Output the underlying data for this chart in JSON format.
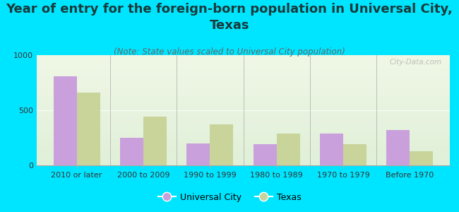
{
  "title": "Year of entry for the foreign-born population in Universal City,\nTexas",
  "subtitle": "(Note: State values scaled to Universal City population)",
  "categories": [
    "2010 or later",
    "2000 to 2009",
    "1990 to 1999",
    "1980 to 1989",
    "1970 to 1979",
    "Before 1970"
  ],
  "universal_city_values": [
    810,
    250,
    200,
    190,
    290,
    320
  ],
  "texas_values": [
    660,
    440,
    370,
    290,
    195,
    130
  ],
  "universal_city_color": "#c9a0dc",
  "texas_color": "#c8d49a",
  "background_color": "#00e5ff",
  "plot_bg_color": "#e8f0dc",
  "ylim": [
    0,
    1000
  ],
  "yticks": [
    0,
    500,
    1000
  ],
  "bar_width": 0.35,
  "title_fontsize": 13,
  "subtitle_fontsize": 8.5,
  "tick_fontsize": 8,
  "legend_fontsize": 9,
  "title_color": "#1a3a3a",
  "subtitle_color": "#666666",
  "watermark_text": "City-Data.com"
}
